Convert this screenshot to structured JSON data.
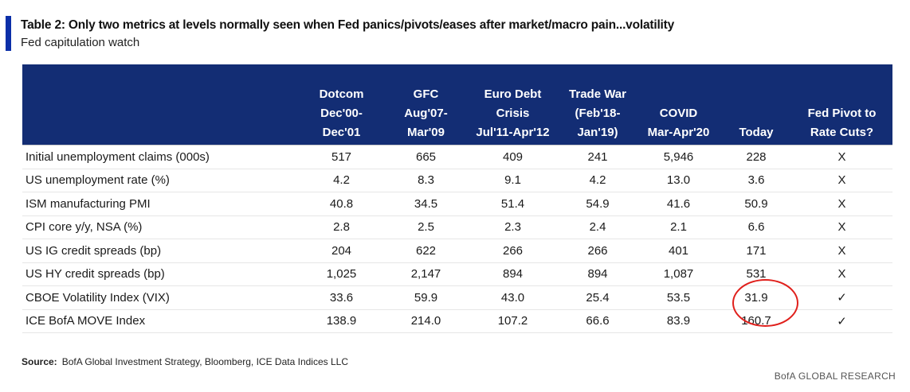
{
  "title": "Table 2: Only two metrics at levels normally seen when Fed panics/pivots/eases after market/macro pain...volatility",
  "subtitle": "Fed capitulation watch",
  "colors": {
    "header_bg": "#132d74",
    "accent": "#0b2fa8",
    "circle": "#e0201c"
  },
  "table": {
    "headers": [
      {
        "lines": [
          "Dotcom",
          "Dec'00-",
          "Dec'01"
        ]
      },
      {
        "lines": [
          "GFC",
          "Aug'07-",
          "Mar'09"
        ]
      },
      {
        "lines": [
          "Euro Debt",
          "Crisis",
          "Jul'11-Apr'12"
        ]
      },
      {
        "lines": [
          "Trade War",
          "(Feb'18-",
          "Jan'19)"
        ]
      },
      {
        "lines": [
          "COVID",
          "Mar-Apr'20"
        ]
      },
      {
        "lines": [
          "Today"
        ]
      },
      {
        "lines": [
          "Fed Pivot to",
          "Rate Cuts?"
        ]
      }
    ],
    "rows": [
      {
        "metric": "Initial unemployment claims (000s)",
        "values": [
          "517",
          "665",
          "409",
          "241",
          "5,946",
          "228",
          "X"
        ]
      },
      {
        "metric": "US unemployment rate (%)",
        "values": [
          "4.2",
          "8.3",
          "9.1",
          "4.2",
          "13.0",
          "3.6",
          "X"
        ]
      },
      {
        "metric": "ISM manufacturing PMI",
        "values": [
          "40.8",
          "34.5",
          "51.4",
          "54.9",
          "41.6",
          "50.9",
          "X"
        ]
      },
      {
        "metric": "CPI core y/y, NSA (%)",
        "values": [
          "2.8",
          "2.5",
          "2.3",
          "2.4",
          "2.1",
          "6.6",
          "X"
        ]
      },
      {
        "metric": "US IG credit spreads (bp)",
        "values": [
          "204",
          "622",
          "266",
          "266",
          "401",
          "171",
          "X"
        ]
      },
      {
        "metric": "US HY credit spreads (bp)",
        "values": [
          "1,025",
          "2,147",
          "894",
          "894",
          "1,087",
          "531",
          "X"
        ]
      },
      {
        "metric": "CBOE Volatility Index (VIX)",
        "values": [
          "33.6",
          "59.9",
          "43.0",
          "25.4",
          "53.5",
          "31.9",
          "✓"
        ]
      },
      {
        "metric": "ICE BofA MOVE Index",
        "values": [
          "138.9",
          "214.0",
          "107.2",
          "66.6",
          "83.9",
          "160.7",
          "✓"
        ]
      }
    ]
  },
  "source_label": "Source:",
  "source_text": "BofA Global Investment Strategy, Bloomberg, ICE Data Indices LLC",
  "brand": "BofA GLOBAL RESEARCH"
}
